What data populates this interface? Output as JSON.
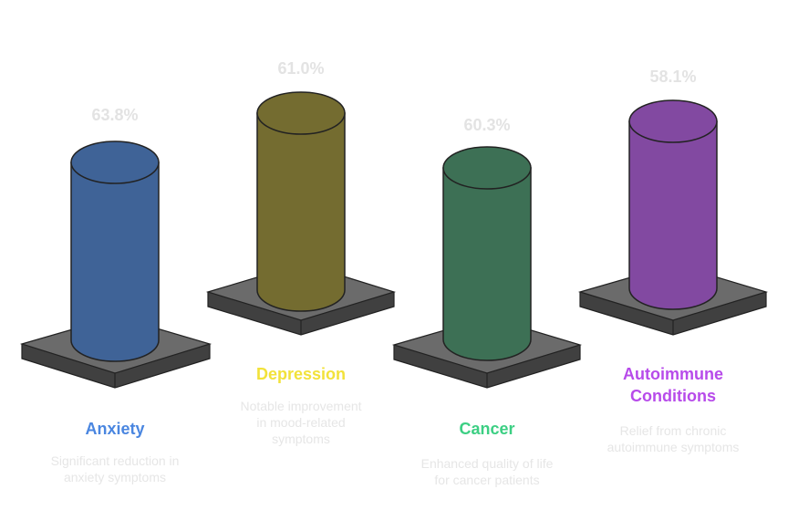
{
  "items": [
    {
      "label": "Anxiety",
      "value": "63.8%",
      "description": "Significant reduction in anxiety symptoms",
      "color": "#3f6397",
      "title_color": "#4a86e0"
    },
    {
      "label": "Depression",
      "value": "61.0%",
      "description": "Notable improvement in mood-related symptoms",
      "color": "#746c30",
      "title_color": "#f2e23a"
    },
    {
      "label": "Cancer",
      "value": "60.3%",
      "description": "Enhanced quality of life for cancer patients",
      "color": "#3d7055",
      "title_color": "#3ccf83"
    },
    {
      "label": "Autoimmune Conditions",
      "value": "58.1%",
      "description": "Relief from chronic autoimmune symptoms",
      "color": "#8249a1",
      "title_color": "#b74bea"
    }
  ]
}
